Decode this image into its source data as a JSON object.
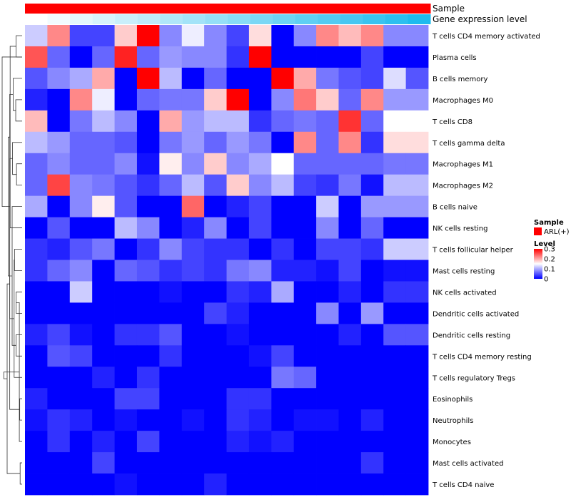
{
  "chart_data": {
    "type": "heatmap",
    "title": "",
    "columns": 18,
    "annotation_tracks": [
      {
        "name": "Sample",
        "values": [
          "ARL(+)",
          "ARL(+)",
          "ARL(+)",
          "ARL(+)",
          "ARL(+)",
          "ARL(+)",
          "ARL(+)",
          "ARL(+)",
          "ARL(+)",
          "ARL(+)",
          "ARL(+)",
          "ARL(+)",
          "ARL(+)",
          "ARL(+)",
          "ARL(+)",
          "ARL(+)",
          "ARL(+)",
          "ARL(+)"
        ]
      },
      {
        "name": "Gene expression level",
        "values": [
          0.0,
          0.06,
          0.12,
          0.18,
          0.24,
          0.29,
          0.35,
          0.41,
          0.47,
          0.53,
          0.59,
          0.65,
          0.71,
          0.76,
          0.82,
          0.88,
          0.94,
          1.0
        ]
      }
    ],
    "rows": [
      "T cells CD4 memory activated",
      "Plasma cells",
      "B cells memory",
      "Macrophages M0",
      "T cells CD8",
      "T cells gamma delta",
      "Macrophages M1",
      "Macrophages M2",
      "B cells naive",
      "NK cells resting",
      "T cells follicular helper",
      "Mast cells resting",
      "NK cells activated",
      "Dendritic cells activated",
      "Dendritic cells resting",
      "T cells CD4 memory resting",
      "T cells regulatory  Tregs",
      "Eosinophils",
      "Neutrophils",
      "Monocytes",
      "Mast cells activated",
      "T cells CD4 naive"
    ],
    "values": [
      [
        0.12,
        0.22,
        0.04,
        0.04,
        0.18,
        0.3,
        0.08,
        0.14,
        0.08,
        0.04,
        0.17,
        0.0,
        0.08,
        0.22,
        0.19,
        0.22,
        0.08,
        0.08
      ],
      [
        0.25,
        0.06,
        0.0,
        0.06,
        0.28,
        0.06,
        0.09,
        0.08,
        0.08,
        0.03,
        0.3,
        0.0,
        0.0,
        0.0,
        0.0,
        0.04,
        0.0,
        0.0
      ],
      [
        0.05,
        0.08,
        0.1,
        0.2,
        0.0,
        0.3,
        0.11,
        0.0,
        0.06,
        0.0,
        0.0,
        0.3,
        0.2,
        0.07,
        0.05,
        0.04,
        0.13,
        0.05
      ],
      [
        0.02,
        0.0,
        0.22,
        0.14,
        0.0,
        0.06,
        0.07,
        0.07,
        0.18,
        0.3,
        0.0,
        0.08,
        0.23,
        0.18,
        0.06,
        0.22,
        0.09,
        0.09
      ],
      [
        0.19,
        0.0,
        0.07,
        0.11,
        0.08,
        0.0,
        0.2,
        0.09,
        0.11,
        0.11,
        0.03,
        0.06,
        0.07,
        0.06,
        0.27,
        0.06,
        0.15,
        0.15
      ],
      [
        0.11,
        0.09,
        0.06,
        0.06,
        0.05,
        0.0,
        0.07,
        0.09,
        0.06,
        0.09,
        0.07,
        0.0,
        0.22,
        0.06,
        0.22,
        0.03,
        0.17,
        0.17
      ],
      [
        0.06,
        0.08,
        0.06,
        0.06,
        0.08,
        0.01,
        0.16,
        0.08,
        0.18,
        0.08,
        0.1,
        0.15,
        0.06,
        0.06,
        0.06,
        0.06,
        0.07,
        0.07
      ],
      [
        0.06,
        0.26,
        0.08,
        0.07,
        0.05,
        0.03,
        0.06,
        0.11,
        0.05,
        0.18,
        0.08,
        0.11,
        0.04,
        0.03,
        0.07,
        0.01,
        0.11,
        0.11
      ],
      [
        0.1,
        0.0,
        0.08,
        0.16,
        0.05,
        0.0,
        0.0,
        0.24,
        0.0,
        0.02,
        0.04,
        0.0,
        0.0,
        0.12,
        0.0,
        0.09,
        0.09,
        0.09
      ],
      [
        0.0,
        0.05,
        0.0,
        0.0,
        0.11,
        0.08,
        0.0,
        0.02,
        0.08,
        0.0,
        0.04,
        0.0,
        0.0,
        0.08,
        0.0,
        0.06,
        0.0,
        0.0
      ],
      [
        0.03,
        0.02,
        0.05,
        0.07,
        0.0,
        0.03,
        0.08,
        0.04,
        0.03,
        0.03,
        0.0,
        0.03,
        0.0,
        0.04,
        0.04,
        0.03,
        0.12,
        0.12
      ],
      [
        0.03,
        0.06,
        0.08,
        0.0,
        0.06,
        0.05,
        0.03,
        0.04,
        0.03,
        0.07,
        0.08,
        0.02,
        0.02,
        0.01,
        0.04,
        0.0,
        0.01,
        0.01
      ],
      [
        0.0,
        0.0,
        0.12,
        0.0,
        0.0,
        0.0,
        0.01,
        0.0,
        0.0,
        0.03,
        0.02,
        0.1,
        0.0,
        0.0,
        0.02,
        0.0,
        0.03,
        0.03
      ],
      [
        0.0,
        0.0,
        0.0,
        0.0,
        0.0,
        0.0,
        0.0,
        0.0,
        0.04,
        0.02,
        0.0,
        0.0,
        0.0,
        0.08,
        0.0,
        0.09,
        0.0,
        0.0
      ],
      [
        0.02,
        0.04,
        0.01,
        0.0,
        0.03,
        0.03,
        0.05,
        0.0,
        0.0,
        0.01,
        0.0,
        0.0,
        0.0,
        0.0,
        0.02,
        0.0,
        0.05,
        0.05
      ],
      [
        0.0,
        0.05,
        0.04,
        0.0,
        0.0,
        0.0,
        0.03,
        0.0,
        0.0,
        0.0,
        0.01,
        0.04,
        0.0,
        0.0,
        0.0,
        0.0,
        0.0,
        0.0
      ],
      [
        0.0,
        0.0,
        0.0,
        0.02,
        0.0,
        0.03,
        0.0,
        0.0,
        0.0,
        0.0,
        0.0,
        0.07,
        0.06,
        0.0,
        0.0,
        0.0,
        0.0,
        0.0
      ],
      [
        0.02,
        0.0,
        0.0,
        0.0,
        0.04,
        0.04,
        0.0,
        0.0,
        0.0,
        0.03,
        0.03,
        0.0,
        0.0,
        0.0,
        0.0,
        0.0,
        0.0,
        0.0
      ],
      [
        0.01,
        0.03,
        0.02,
        0.0,
        0.01,
        0.0,
        0.0,
        0.01,
        0.0,
        0.03,
        0.02,
        0.0,
        0.01,
        0.01,
        0.0,
        0.02,
        0.0,
        0.0
      ],
      [
        0.0,
        0.03,
        0.0,
        0.02,
        0.0,
        0.04,
        0.0,
        0.0,
        0.0,
        0.02,
        0.01,
        0.02,
        0.0,
        0.0,
        0.0,
        0.0,
        0.0,
        0.0
      ],
      [
        0.0,
        0.0,
        0.0,
        0.04,
        0.0,
        0.0,
        0.0,
        0.0,
        0.0,
        0.0,
        0.0,
        0.0,
        0.0,
        0.0,
        0.0,
        0.03,
        0.0,
        0.0
      ],
      [
        0.0,
        0.0,
        0.0,
        0.0,
        0.01,
        0.0,
        0.0,
        0.0,
        0.02,
        0.0,
        0.0,
        0.0,
        0.0,
        0.0,
        0.0,
        0.0,
        0.0,
        0.0
      ]
    ],
    "color_scale": {
      "min": 0,
      "mid": 0.15,
      "max": 0.3,
      "low_color": "#0000ff",
      "mid_color": "#ffffff",
      "high_color": "#ff0000"
    },
    "track_colors": {
      "Sample": "#ff0000",
      "gene_low": "#ffffff",
      "gene_high": "#1ebbee"
    },
    "legend": {
      "sample_title": "Sample",
      "sample_entries": [
        {
          "label": "ARL(+)",
          "color": "#ff0000"
        }
      ],
      "level_title": "Level",
      "level_ticks": [
        {
          "value": 0.3,
          "label": "0.3"
        },
        {
          "value": 0.2,
          "label": "0.2"
        },
        {
          "value": 0.1,
          "label": "0.1"
        },
        {
          "value": 0,
          "label": "0"
        }
      ]
    },
    "dendrogram": {
      "side": "left",
      "merges": [
        [
          0,
          1,
          0.3
        ],
        [
          3,
          4,
          0.32
        ],
        [
          6,
          7,
          0.28
        ],
        [
          12,
          13,
          0.3
        ],
        [
          14,
          15,
          0.3
        ],
        [
          17,
          18,
          0.12
        ],
        [
          20,
          21,
          0.1
        ],
        [
          10,
          11,
          0.38
        ],
        [
          19,
          25,
          0.14
        ],
        [
          2,
          23,
          0.45
        ],
        [
          5,
          24,
          0.48
        ],
        [
          8,
          26,
          0.5
        ],
        [
          29,
          16,
          0.4
        ],
        [
          9,
          22,
          0.6
        ],
        [
          34,
          31,
          0.62
        ],
        [
          27,
          32,
          0.62
        ],
        [
          33,
          35,
          0.7
        ],
        [
          37,
          28,
          0.75
        ],
        [
          38,
          36,
          0.85
        ],
        [
          39,
          30,
          0.92
        ],
        [
          40,
          1,
          1.0
        ]
      ]
    }
  }
}
